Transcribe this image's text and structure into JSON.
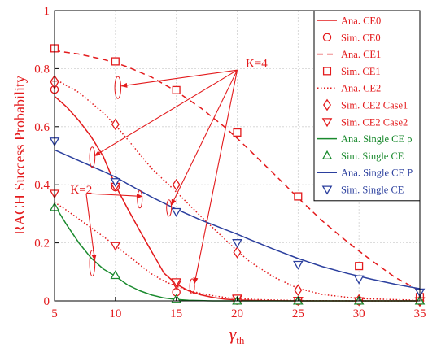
{
  "chart_data": {
    "type": "line",
    "title": "",
    "xlabel": "γ",
    "xlabel_sub": "th",
    "ylabel": "RACH Success Probability",
    "xlim": [
      5,
      35
    ],
    "ylim": [
      0,
      1
    ],
    "xticks": [
      5,
      10,
      15,
      20,
      25,
      30,
      35
    ],
    "yticks": [
      0,
      0.2,
      0.4,
      0.6,
      0.8,
      1
    ],
    "ytick_labels": [
      "0",
      "0.2",
      "0.4",
      "0.6",
      "0.8",
      "1"
    ],
    "grid": true,
    "legend_position": "top-right",
    "legend": [
      {
        "label": "Ana. CE0",
        "color": "#e31a1c",
        "line": "solid",
        "marker": "none"
      },
      {
        "label": "Sim. CE0",
        "color": "#e31a1c",
        "line": "none",
        "marker": "circle"
      },
      {
        "label": "Ana. CE1",
        "color": "#e31a1c",
        "line": "dashed",
        "marker": "none"
      },
      {
        "label": "Sim. CE1",
        "color": "#e31a1c",
        "line": "none",
        "marker": "square"
      },
      {
        "label": "Ana. CE2",
        "color": "#e31a1c",
        "line": "dotted",
        "marker": "none"
      },
      {
        "label": "Sim. CE2 Case1",
        "color": "#e31a1c",
        "line": "none",
        "marker": "diamond"
      },
      {
        "label": "Sim. CE2 Case2",
        "color": "#e31a1c",
        "line": "none",
        "marker": "triangle-down"
      },
      {
        "label": "Ana. Single CE ρ",
        "color": "#1a8a2e",
        "line": "solid",
        "marker": "none"
      },
      {
        "label": "Sim. Single CE",
        "color": "#1a8a2e",
        "line": "none",
        "marker": "triangle-up"
      },
      {
        "label": "Ana. Single CE P",
        "color": "#2b3f9e",
        "line": "solid",
        "marker": "none"
      },
      {
        "label": "Sim. Single CE",
        "color": "#2b3f9e",
        "line": "none",
        "marker": "triangle-down"
      }
    ],
    "series": [
      {
        "name": "Ana. CE0 (K=4)",
        "color": "#e31a1c",
        "line": "solid",
        "x": [
          5,
          6,
          7,
          8,
          9,
          10,
          11,
          12,
          13,
          14,
          15,
          16,
          17,
          18,
          19,
          20,
          22,
          25,
          30,
          35
        ],
        "y": [
          0.705,
          0.668,
          0.621,
          0.566,
          0.498,
          0.398,
          0.318,
          0.242,
          0.168,
          0.095,
          0.058,
          0.035,
          0.021,
          0.012,
          0.006,
          0.003,
          0.001,
          0,
          0,
          0
        ]
      },
      {
        "name": "Sim. CE0 (K=4)",
        "color": "#e31a1c",
        "marker": "circle",
        "x": [
          5,
          10,
          15,
          20,
          25,
          30,
          35
        ],
        "y": [
          0.728,
          0.392,
          0.03,
          0.001,
          0,
          0,
          0
        ]
      },
      {
        "name": "Ana. CE1 (K=4)",
        "color": "#e31a1c",
        "line": "dashed",
        "x": [
          5,
          7,
          9,
          10,
          11,
          13,
          15,
          17,
          19,
          20,
          21,
          23,
          25,
          27,
          29,
          30,
          31,
          33,
          35
        ],
        "y": [
          0.862,
          0.85,
          0.832,
          0.82,
          0.806,
          0.77,
          0.722,
          0.665,
          0.598,
          0.56,
          0.52,
          0.438,
          0.355,
          0.275,
          0.205,
          0.172,
          0.14,
          0.08,
          0.035
        ]
      },
      {
        "name": "Sim. CE1 (K=4)",
        "color": "#e31a1c",
        "marker": "square",
        "x": [
          5,
          10,
          15,
          20,
          25,
          30,
          35
        ],
        "y": [
          0.87,
          0.825,
          0.726,
          0.58,
          0.36,
          0.12,
          0.013
        ]
      },
      {
        "name": "Ana. CE2 (K=4)",
        "color": "#e31a1c",
        "line": "dotted",
        "x": [
          5,
          7,
          9,
          10,
          11,
          13,
          15,
          17,
          19,
          20,
          21,
          23,
          25,
          27,
          30,
          35
        ],
        "y": [
          0.765,
          0.718,
          0.648,
          0.605,
          0.556,
          0.455,
          0.375,
          0.292,
          0.212,
          0.172,
          0.136,
          0.082,
          0.043,
          0.022,
          0.008,
          0.002
        ]
      },
      {
        "name": "Sim. CE2 Case1 (K=4)",
        "color": "#e31a1c",
        "marker": "diamond",
        "x": [
          5,
          10,
          15,
          20,
          25,
          30,
          35
        ],
        "y": [
          0.758,
          0.608,
          0.4,
          0.167,
          0.037,
          0.003,
          0
        ]
      },
      {
        "name": "Sim. CE2 Case2 (K=4)",
        "color": "#e31a1c",
        "marker": "triangle-down",
        "x": [
          5,
          10,
          15,
          20,
          25,
          30,
          35
        ],
        "y": [
          0.746,
          0.394,
          0.057,
          0.006,
          0.001,
          0,
          0
        ]
      },
      {
        "name": "Ana. CE2 (K=2)",
        "color": "#e31a1c",
        "line": "dotted",
        "x": [
          5,
          6,
          7,
          8,
          9,
          10,
          11,
          12,
          13,
          14,
          15,
          16,
          17,
          18,
          19,
          20,
          22,
          25,
          30,
          35
        ],
        "y": [
          0.34,
          0.312,
          0.282,
          0.252,
          0.222,
          0.19,
          0.158,
          0.124,
          0.092,
          0.068,
          0.05,
          0.036,
          0.026,
          0.018,
          0.012,
          0.008,
          0.004,
          0.001,
          0,
          0
        ]
      },
      {
        "name": "Sim. CE2 Case2 (K=2)",
        "color": "#e31a1c",
        "marker": "triangle-down",
        "x": [
          5,
          10,
          15,
          20,
          25,
          30,
          35
        ],
        "y": [
          0.37,
          0.19,
          0.065,
          0.009,
          0.001,
          0,
          0
        ]
      },
      {
        "name": "Ana. Single CE ρ (K=2)",
        "color": "#1a8a2e",
        "line": "solid",
        "x": [
          5,
          6,
          7,
          8,
          9,
          10,
          11,
          12,
          13,
          14,
          15,
          16,
          17,
          18,
          20,
          22,
          25,
          30,
          35
        ],
        "y": [
          0.33,
          0.262,
          0.2,
          0.148,
          0.11,
          0.085,
          0.055,
          0.035,
          0.02,
          0.01,
          0.005,
          0.002,
          0.001,
          0,
          0,
          0,
          0,
          0,
          0
        ]
      },
      {
        "name": "Sim. Single CE ρ (K=2)",
        "color": "#1a8a2e",
        "marker": "triangle-up",
        "x": [
          5,
          10,
          15,
          20,
          25,
          30,
          35
        ],
        "y": [
          0.322,
          0.088,
          0.006,
          0,
          0,
          0,
          0
        ]
      },
      {
        "name": "Ana. Single CE P",
        "color": "#2b3f9e",
        "line": "solid",
        "x": [
          5,
          7,
          9,
          10,
          11,
          13,
          15,
          17,
          19,
          20,
          21,
          23,
          25,
          27,
          29,
          30,
          31,
          33,
          35
        ],
        "y": [
          0.52,
          0.483,
          0.446,
          0.427,
          0.403,
          0.357,
          0.316,
          0.279,
          0.246,
          0.23,
          0.212,
          0.178,
          0.146,
          0.118,
          0.095,
          0.085,
          0.075,
          0.057,
          0.042
        ]
      },
      {
        "name": "Sim. Single CE P",
        "color": "#2b3f9e",
        "marker": "triangle-down",
        "x": [
          5,
          10,
          15,
          20,
          25,
          30,
          35
        ],
        "y": [
          0.55,
          0.41,
          0.307,
          0.2,
          0.125,
          0.075,
          0.03
        ]
      }
    ],
    "annotations": [
      {
        "text": "K=4",
        "x": 20.7,
        "y": 0.805,
        "color": "#e31a1c"
      },
      {
        "text": "K=2",
        "x": 6.3,
        "y": 0.37,
        "color": "#e31a1c"
      }
    ],
    "annotation_ellipses": [
      {
        "cx": 10.2,
        "cy": 0.735,
        "rx": 0.25,
        "ry": 0.038
      },
      {
        "cx": 8.1,
        "cy": 0.495,
        "rx": 0.22,
        "ry": 0.035
      },
      {
        "cx": 12.0,
        "cy": 0.35,
        "rx": 0.2,
        "ry": 0.03
      },
      {
        "cx": 14.4,
        "cy": 0.32,
        "rx": 0.2,
        "ry": 0.028
      },
      {
        "cx": 8.1,
        "cy": 0.13,
        "rx": 0.22,
        "ry": 0.045
      },
      {
        "cx": 16.3,
        "cy": 0.05,
        "rx": 0.2,
        "ry": 0.026
      }
    ],
    "annotation_arrows": [
      {
        "from": [
          20.0,
          0.795
        ],
        "to": [
          10.5,
          0.74
        ]
      },
      {
        "from": [
          20.0,
          0.795
        ],
        "to": [
          8.3,
          0.5
        ]
      },
      {
        "from": [
          20.0,
          0.795
        ],
        "to": [
          14.6,
          0.33
        ]
      },
      {
        "from": [
          20.0,
          0.795
        ],
        "to": [
          16.5,
          0.06
        ]
      },
      {
        "from": [
          7.6,
          0.37
        ],
        "to": [
          12.2,
          0.36
        ]
      },
      {
        "from": [
          7.6,
          0.37
        ],
        "to": [
          8.3,
          0.14
        ]
      }
    ]
  }
}
